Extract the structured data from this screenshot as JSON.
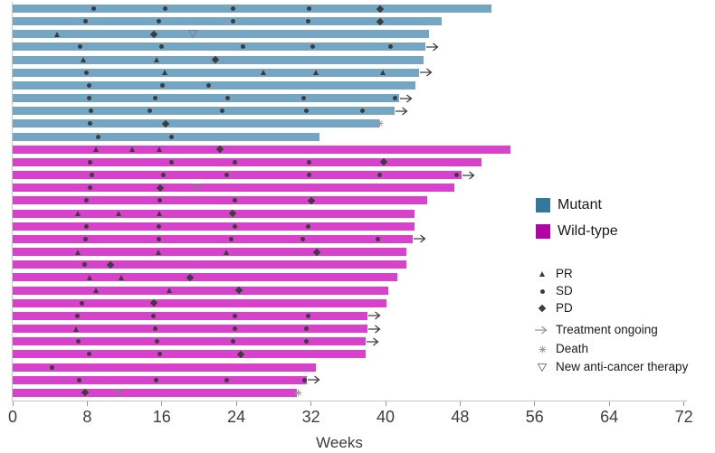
{
  "colors": {
    "mutant_bar": "#74a6c3",
    "wild_type_bar": "#d841cc",
    "mutant_legend": "#35789e",
    "wild_type_legend": "#b203a7",
    "marker": "#3d3d3d",
    "arrow": "#3f3f3f",
    "legend_arrow": "#999999",
    "death": "#9b9b9b",
    "new_therapy": "#808080",
    "axis_line": "#c6c6c6",
    "tick_mark": "#999999",
    "axis_text": "#3d3d3d"
  },
  "chart_data": {
    "type": "bar",
    "subtype": "swimmer-plot",
    "orientation": "horizontal",
    "xlabel": "Weeks",
    "xlim": [
      0,
      72
    ],
    "x_ticks": [
      0,
      8,
      16,
      24,
      32,
      40,
      48,
      56,
      64,
      72
    ],
    "units": "weeks on treatment per patient",
    "marker_meaning": {
      "PR": "partial response (filled triangle)",
      "SD": "stable disease (filled circle)",
      "PD": "progressive disease (filled diamond)",
      "NT": "new anti-cancer therapy (open down triangle)"
    },
    "status_meaning": {
      "ongoing": "treatment ongoing (arrow at bar end)",
      "death": "death (asterisk at bar end)"
    },
    "groups": [
      {
        "name": "Mutant",
        "rows": 11
      },
      {
        "name": "Wild-type",
        "rows": 20
      }
    ],
    "rows": [
      {
        "group": "Mutant",
        "end": 51.4,
        "status": "",
        "markers": [
          [
            "SD",
            8.7
          ],
          [
            "SD",
            16.4
          ],
          [
            "SD",
            23.6
          ],
          [
            "SD",
            31.8
          ],
          [
            "PD",
            39.4
          ]
        ]
      },
      {
        "group": "Mutant",
        "end": 46.0,
        "status": "",
        "markers": [
          [
            "SD",
            7.8
          ],
          [
            "SD",
            15.7
          ],
          [
            "SD",
            23.6
          ],
          [
            "SD",
            31.7
          ],
          [
            "PD",
            39.4
          ]
        ]
      },
      {
        "group": "Mutant",
        "end": 44.7,
        "status": "",
        "markers": [
          [
            "PR",
            4.8
          ],
          [
            "PD",
            15.1
          ],
          [
            "NT",
            19.3
          ]
        ]
      },
      {
        "group": "Mutant",
        "end": 44.3,
        "status": "ongoing",
        "markers": [
          [
            "SD",
            7.2
          ],
          [
            "SD",
            16.0
          ],
          [
            "SD",
            24.7
          ],
          [
            "SD",
            32.2
          ],
          [
            "SD",
            40.5
          ]
        ]
      },
      {
        "group": "Mutant",
        "end": 44.1,
        "status": "",
        "markers": [
          [
            "PR",
            7.6
          ],
          [
            "PR",
            15.5
          ],
          [
            "PD",
            21.7
          ]
        ]
      },
      {
        "group": "Mutant",
        "end": 43.6,
        "status": "ongoing",
        "markers": [
          [
            "SD",
            7.9
          ],
          [
            "PR",
            16.4
          ],
          [
            "PR",
            26.9
          ],
          [
            "PR",
            32.6
          ],
          [
            "PR",
            39.8
          ]
        ]
      },
      {
        "group": "Mutant",
        "end": 43.2,
        "status": "",
        "markers": [
          [
            "SD",
            8.2
          ],
          [
            "SD",
            16.1
          ],
          [
            "SD",
            21.0
          ]
        ]
      },
      {
        "group": "Mutant",
        "end": 41.5,
        "status": "ongoing",
        "markers": [
          [
            "SD",
            8.2
          ],
          [
            "SD",
            15.3
          ],
          [
            "SD",
            23.1
          ],
          [
            "SD",
            31.2
          ],
          [
            "SD",
            41.0
          ]
        ]
      },
      {
        "group": "Mutant",
        "end": 41.0,
        "status": "ongoing",
        "markers": [
          [
            "SD",
            8.4
          ],
          [
            "SD",
            14.7
          ],
          [
            "SD",
            22.5
          ],
          [
            "SD",
            31.5
          ],
          [
            "SD",
            37.5
          ]
        ]
      },
      {
        "group": "Mutant",
        "end": 39.3,
        "status": "death",
        "markers": [
          [
            "SD",
            8.3
          ],
          [
            "PD",
            16.4
          ]
        ]
      },
      {
        "group": "Mutant",
        "end": 32.9,
        "status": "",
        "markers": [
          [
            "SD",
            9.2
          ],
          [
            "SD",
            17.0
          ]
        ]
      },
      {
        "group": "Wild-type",
        "end": 53.4,
        "status": "",
        "markers": [
          [
            "PR",
            9.0
          ],
          [
            "PR",
            12.9
          ],
          [
            "PR",
            15.8
          ],
          [
            "PD",
            22.2
          ]
        ]
      },
      {
        "group": "Wild-type",
        "end": 50.3,
        "status": "",
        "markers": [
          [
            "SD",
            8.3
          ],
          [
            "SD",
            17.0
          ],
          [
            "SD",
            23.8
          ],
          [
            "SD",
            31.8
          ],
          [
            "PD",
            39.8
          ]
        ]
      },
      {
        "group": "Wild-type",
        "end": 48.2,
        "status": "ongoing",
        "markers": [
          [
            "SD",
            8.5
          ],
          [
            "SD",
            16.2
          ],
          [
            "SD",
            23.0
          ],
          [
            "SD",
            31.8
          ],
          [
            "SD",
            39.4
          ],
          [
            "SD",
            47.6
          ]
        ]
      },
      {
        "group": "Wild-type",
        "end": 47.4,
        "status": "",
        "markers": [
          [
            "SD",
            8.3
          ],
          [
            "PD",
            15.8
          ],
          [
            "NT",
            19.7
          ]
        ]
      },
      {
        "group": "Wild-type",
        "end": 44.5,
        "status": "",
        "markers": [
          [
            "SD",
            7.9
          ],
          [
            "SD",
            15.8
          ],
          [
            "SD",
            23.8
          ],
          [
            "PD",
            32.0
          ]
        ]
      },
      {
        "group": "Wild-type",
        "end": 43.1,
        "status": "",
        "markers": [
          [
            "PR",
            7.0
          ],
          [
            "PR",
            11.4
          ],
          [
            "PR",
            15.8
          ],
          [
            "PD",
            23.6
          ]
        ]
      },
      {
        "group": "Wild-type",
        "end": 43.1,
        "status": "",
        "markers": [
          [
            "SD",
            7.9
          ],
          [
            "SD",
            15.7
          ],
          [
            "SD",
            23.8
          ],
          [
            "SD",
            31.7
          ]
        ]
      },
      {
        "group": "Wild-type",
        "end": 42.9,
        "status": "ongoing",
        "markers": [
          [
            "SD",
            7.8
          ],
          [
            "SD",
            15.7
          ],
          [
            "SD",
            23.4
          ],
          [
            "SD",
            31.1
          ],
          [
            "SD",
            39.2
          ]
        ]
      },
      {
        "group": "Wild-type",
        "end": 42.2,
        "status": "",
        "markers": [
          [
            "PR",
            7.0
          ],
          [
            "PR",
            15.7
          ],
          [
            "PR",
            23.0
          ],
          [
            "PD",
            32.6
          ]
        ]
      },
      {
        "group": "Wild-type",
        "end": 42.2,
        "status": "",
        "markers": [
          [
            "SD",
            7.7
          ],
          [
            "PD",
            10.5
          ]
        ]
      },
      {
        "group": "Wild-type",
        "end": 41.3,
        "status": "",
        "markers": [
          [
            "PR",
            8.3
          ],
          [
            "PR",
            11.7
          ],
          [
            "PD",
            19.0
          ]
        ]
      },
      {
        "group": "Wild-type",
        "end": 40.3,
        "status": "",
        "markers": [
          [
            "PR",
            9.0
          ],
          [
            "PR",
            16.8
          ],
          [
            "PD",
            24.3
          ]
        ]
      },
      {
        "group": "Wild-type",
        "end": 40.1,
        "status": "",
        "markers": [
          [
            "SD",
            7.4
          ],
          [
            "PD",
            15.1
          ]
        ]
      },
      {
        "group": "Wild-type",
        "end": 38.1,
        "status": "ongoing",
        "markers": [
          [
            "SD",
            6.9
          ],
          [
            "SD",
            15.1
          ],
          [
            "SD",
            23.8
          ],
          [
            "SD",
            31.7
          ]
        ]
      },
      {
        "group": "Wild-type",
        "end": 38.1,
        "status": "ongoing",
        "markers": [
          [
            "PR",
            6.8
          ],
          [
            "SD",
            15.3
          ],
          [
            "SD",
            23.8
          ],
          [
            "SD",
            31.5
          ]
        ]
      },
      {
        "group": "Wild-type",
        "end": 37.9,
        "status": "ongoing",
        "markers": [
          [
            "SD",
            7.0
          ],
          [
            "SD",
            15.5
          ],
          [
            "SD",
            23.6
          ],
          [
            "SD",
            31.5
          ]
        ]
      },
      {
        "group": "Wild-type",
        "end": 37.9,
        "status": "",
        "markers": [
          [
            "SD",
            8.2
          ],
          [
            "SD",
            15.8
          ],
          [
            "PD",
            24.5
          ]
        ]
      },
      {
        "group": "Wild-type",
        "end": 32.5,
        "status": "",
        "markers": [
          [
            "SD",
            4.2
          ]
        ]
      },
      {
        "group": "Wild-type",
        "end": 31.6,
        "status": "ongoing",
        "markers": [
          [
            "SD",
            7.1
          ],
          [
            "SD",
            15.4
          ],
          [
            "SD",
            23.0
          ],
          [
            "SD",
            31.3
          ]
        ]
      },
      {
        "group": "Wild-type",
        "end": 30.5,
        "status": "death",
        "markers": [
          [
            "PD",
            7.8
          ],
          [
            "NT",
            11.4
          ]
        ]
      }
    ]
  },
  "legend": {
    "group_entries": [
      {
        "label": "Mutant"
      },
      {
        "label": "Wild-type"
      }
    ],
    "marker_entries": [
      {
        "type": "PR",
        "label": "PR"
      },
      {
        "type": "SD",
        "label": "SD"
      },
      {
        "type": "PD",
        "label": "PD"
      },
      {
        "type": "arrow",
        "label": "Treatment ongoing"
      },
      {
        "type": "death",
        "label": "Death"
      },
      {
        "type": "NT",
        "label": "New anti-cancer therapy"
      }
    ]
  }
}
